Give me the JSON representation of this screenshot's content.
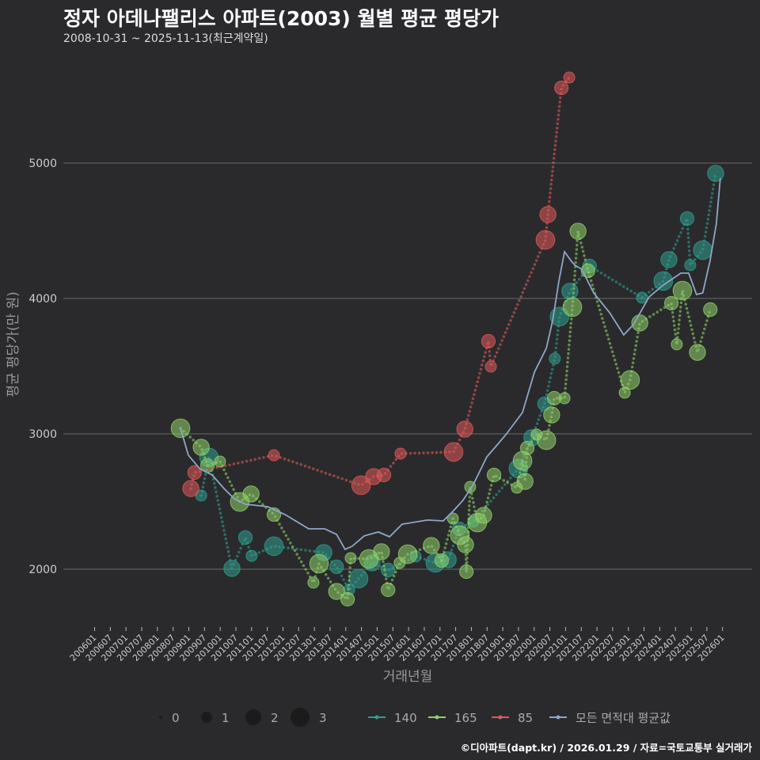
{
  "title": "정자 아데나팰리스 아파트(2003) 월별 평균 평당가",
  "subtitle": "2008-10-31 ~ 2025-11-13(최근계약일)",
  "credit": "©디아파트(dapt.kr) / 2026.01.29 / 자료=국토교통부 실거래가",
  "chart_data": {
    "type": "scatter",
    "xlabel": "거래년월",
    "ylabel": "평균 평당가(만 원)",
    "ylim": [
      1600,
      5800
    ],
    "xlim": [
      2005.9,
      2026.2
    ],
    "yticks": [
      2000,
      3000,
      4000,
      5000
    ],
    "xticks": [
      "200601",
      "200607",
      "200701",
      "200707",
      "200801",
      "200807",
      "200901",
      "200907",
      "201001",
      "201007",
      "201101",
      "201107",
      "201201",
      "201207",
      "201301",
      "201307",
      "201401",
      "201407",
      "201501",
      "201507",
      "201601",
      "201607",
      "201701",
      "201707",
      "201801",
      "201807",
      "201901",
      "201907",
      "202001",
      "202007",
      "202101",
      "202107",
      "202201",
      "202207",
      "202301",
      "202307",
      "202401",
      "202407",
      "202501",
      "202507",
      "202601"
    ],
    "grid": true,
    "legend_position": "bottom",
    "size_legend": {
      "title": "",
      "values": [
        "0",
        "1",
        "2",
        "3"
      ]
    },
    "series": [
      {
        "name": "140",
        "color": "#2f9e8f",
        "points": [
          [
            2009.4,
            2544
          ],
          [
            2009.65,
            2825
          ],
          [
            2010.38,
            2006
          ],
          [
            2010.81,
            2234
          ],
          [
            2011.01,
            2099
          ],
          [
            2011.72,
            2170
          ],
          [
            2013.31,
            2123
          ],
          [
            2013.72,
            2018
          ],
          [
            2014.12,
            1848
          ],
          [
            2014.42,
            1930
          ],
          [
            2014.85,
            2047
          ],
          [
            2015.36,
            1994
          ],
          [
            2016.24,
            2094
          ],
          [
            2016.87,
            2047
          ],
          [
            2017.28,
            2070
          ],
          [
            2017.63,
            2298
          ],
          [
            2018.08,
            2351
          ],
          [
            2019.52,
            2743
          ],
          [
            2019.95,
            2971
          ],
          [
            2020.35,
            3222
          ],
          [
            2020.68,
            3556
          ],
          [
            2020.83,
            3866
          ],
          [
            2021.16,
            4053
          ],
          [
            2021.79,
            4240
          ],
          [
            2023.46,
            4006
          ],
          [
            2024.14,
            4129
          ],
          [
            2024.32,
            4287
          ],
          [
            2024.9,
            4591
          ],
          [
            2025.0,
            4246
          ],
          [
            2025.4,
            4357
          ],
          [
            2025.81,
            4924
          ]
        ]
      },
      {
        "name": "165",
        "color": "#8fd16a",
        "points": [
          [
            2008.74,
            3041
          ],
          [
            2009.4,
            2901
          ],
          [
            2009.6,
            2766
          ],
          [
            2010.0,
            2795
          ],
          [
            2010.63,
            2497
          ],
          [
            2010.99,
            2556
          ],
          [
            2011.72,
            2404
          ],
          [
            2012.98,
            1901
          ],
          [
            2013.16,
            2041
          ],
          [
            2013.72,
            1836
          ],
          [
            2014.07,
            1778
          ],
          [
            2014.17,
            2082
          ],
          [
            2014.75,
            2076
          ],
          [
            2015.15,
            2129
          ],
          [
            2015.36,
            1848
          ],
          [
            2015.73,
            2047
          ],
          [
            2015.99,
            2111
          ],
          [
            2016.74,
            2175
          ],
          [
            2017.07,
            2064
          ],
          [
            2017.43,
            2374
          ],
          [
            2017.65,
            2251
          ],
          [
            2017.83,
            2181
          ],
          [
            2017.86,
            1982
          ],
          [
            2017.98,
            2608
          ],
          [
            2018.21,
            2345
          ],
          [
            2018.41,
            2398
          ],
          [
            2018.74,
            2696
          ],
          [
            2019.47,
            2602
          ],
          [
            2019.65,
            2801
          ],
          [
            2019.73,
            2649
          ],
          [
            2019.8,
            2895
          ],
          [
            2020.1,
            2994
          ],
          [
            2020.41,
            2953
          ],
          [
            2020.58,
            3140
          ],
          [
            2020.66,
            3263
          ],
          [
            2020.99,
            3263
          ],
          [
            2021.24,
            3936
          ],
          [
            2021.42,
            4497
          ],
          [
            2021.74,
            4205
          ],
          [
            2022.91,
            3304
          ],
          [
            2023.08,
            3398
          ],
          [
            2023.39,
            3819
          ],
          [
            2024.4,
            3965
          ],
          [
            2024.57,
            3661
          ],
          [
            2024.75,
            4058
          ],
          [
            2025.23,
            3602
          ],
          [
            2025.64,
            3918
          ]
        ]
      },
      {
        "name": "85",
        "color": "#e05a5a",
        "points": [
          [
            2009.07,
            2596
          ],
          [
            2009.19,
            2714
          ],
          [
            2011.72,
            2842
          ],
          [
            2014.5,
            2620
          ],
          [
            2014.9,
            2684
          ],
          [
            2015.23,
            2696
          ],
          [
            2015.76,
            2854
          ],
          [
            2017.45,
            2866
          ],
          [
            2017.81,
            3035
          ],
          [
            2018.56,
            3684
          ],
          [
            2018.64,
            3497
          ],
          [
            2020.38,
            4433
          ],
          [
            2020.46,
            4620
          ],
          [
            2020.89,
            5556
          ],
          [
            2021.14,
            5632
          ]
        ]
      },
      {
        "name": "모든 면적대 평균값",
        "color": "#8ea6c8",
        "type": "line",
        "points": [
          [
            2008.74,
            3041
          ],
          [
            2008.99,
            2842
          ],
          [
            2009.35,
            2743
          ],
          [
            2009.75,
            2696
          ],
          [
            2010.13,
            2596
          ],
          [
            2010.46,
            2520
          ],
          [
            2010.81,
            2480
          ],
          [
            2011.52,
            2462
          ],
          [
            2012.07,
            2404
          ],
          [
            2012.83,
            2298
          ],
          [
            2013.34,
            2298
          ],
          [
            2013.72,
            2257
          ],
          [
            2013.99,
            2146
          ],
          [
            2014.22,
            2170
          ],
          [
            2014.6,
            2246
          ],
          [
            2015.05,
            2275
          ],
          [
            2015.41,
            2240
          ],
          [
            2015.81,
            2333
          ],
          [
            2016.62,
            2363
          ],
          [
            2017.12,
            2357
          ],
          [
            2017.45,
            2433
          ],
          [
            2017.75,
            2509
          ],
          [
            2018.08,
            2626
          ],
          [
            2018.51,
            2830
          ],
          [
            2018.84,
            2918
          ],
          [
            2019.14,
            3000
          ],
          [
            2019.65,
            3158
          ],
          [
            2020.03,
            3456
          ],
          [
            2020.41,
            3632
          ],
          [
            2020.61,
            3836
          ],
          [
            2020.81,
            4129
          ],
          [
            2020.99,
            4345
          ],
          [
            2021.21,
            4275
          ],
          [
            2021.32,
            4246
          ],
          [
            2021.54,
            4216
          ],
          [
            2021.92,
            4041
          ],
          [
            2022.43,
            3895
          ],
          [
            2022.88,
            3731
          ],
          [
            2023.19,
            3807
          ],
          [
            2023.69,
            4012
          ],
          [
            2024.14,
            4099
          ],
          [
            2024.7,
            4187
          ],
          [
            2024.95,
            4187
          ],
          [
            2025.2,
            4029
          ],
          [
            2025.4,
            4041
          ],
          [
            2025.63,
            4275
          ],
          [
            2025.83,
            4550
          ],
          [
            2025.96,
            4889
          ]
        ]
      }
    ]
  }
}
